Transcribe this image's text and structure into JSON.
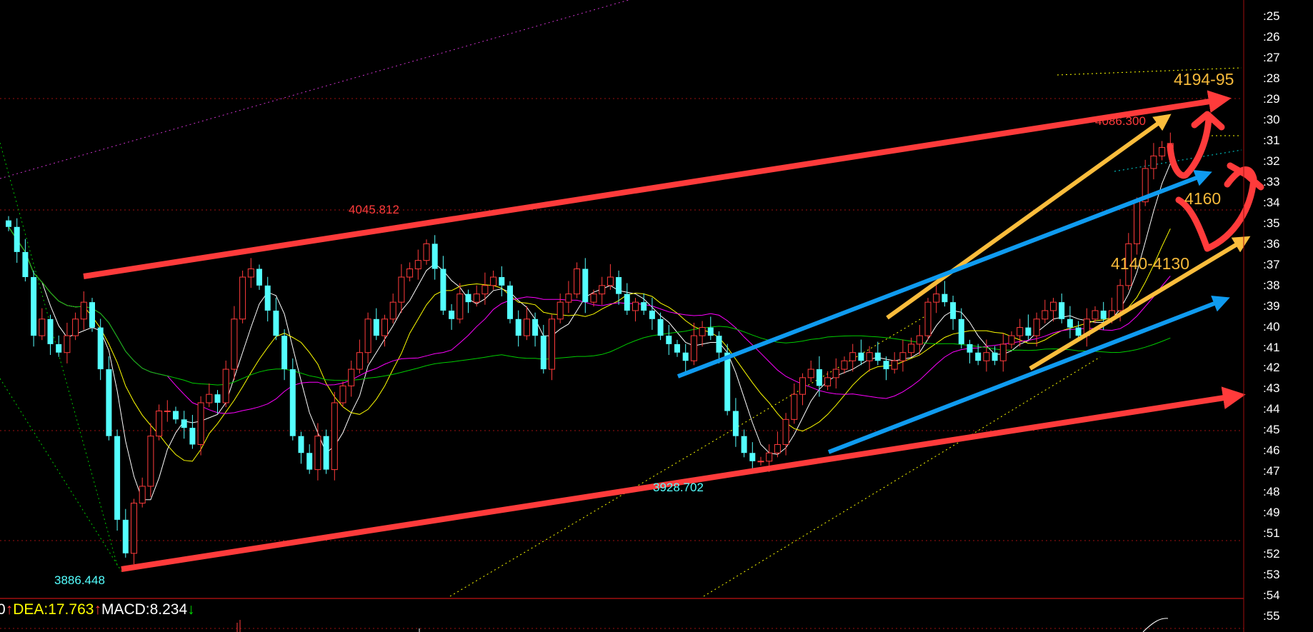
{
  "chart_data": {
    "type": "candlestick",
    "ylim": [
      3874,
      4150
    ],
    "colors": {
      "up": "#ff3b3b",
      "down": "#54ffff",
      "ma5": "#ffffff",
      "ma10": "#ffff00",
      "ma20": "#ff00ff",
      "ma60": "#00cc00"
    },
    "close": [
      4045.1,
      4033.5,
      4021.9,
      3994.8,
      4002.5,
      3990.9,
      3987.0,
      3994.8,
      4002.5,
      4010.3,
      3998.6,
      3979.3,
      3948.4,
      3909.7,
      3894.2,
      3917.4,
      3925.2,
      3948.4,
      3960.0,
      3960.0,
      3956.1,
      3952.2,
      3944.5,
      3963.8,
      3967.7,
      3963.8,
      3979.3,
      4002.5,
      4021.9,
      4025.7,
      4018.0,
      4006.4,
      3994.8,
      3979.3,
      3948.4,
      3940.6,
      3932.9,
      3948.4,
      3932.9,
      3963.8,
      3971.6,
      3979.3,
      3987.0,
      4002.5,
      3994.8,
      4002.5,
      4010.3,
      4021.9,
      4025.7,
      4029.6,
      4037.3,
      4025.7,
      4006.4,
      4002.5,
      4014.1,
      4010.3,
      4014.1,
      4018.0,
      4021.9,
      4018.0,
      4002.5,
      3994.8,
      4002.5,
      3994.8,
      3979.3,
      4002.5,
      4010.3,
      4014.1,
      4025.7,
      4010.3,
      4014.1,
      4018.0,
      4021.9,
      4014.1,
      4006.4,
      4010.3,
      4006.4,
      4002.5,
      3994.8,
      3990.9,
      3987.0,
      3983.2,
      3994.8,
      3998.6,
      3994.8,
      3987.0,
      3960.0,
      3948.4,
      3940.6,
      3936.8,
      3936.8,
      3940.6,
      3944.5,
      3956.1,
      3967.7,
      3975.4,
      3979.3,
      3971.6,
      3975.4,
      3979.3,
      3983.2,
      3987.0,
      3983.2,
      3987.0,
      3983.2,
      3979.3,
      3983.2,
      3987.0,
      3990.9,
      3994.8,
      4010.3,
      4014.1,
      4010.3,
      4002.5,
      3990.9,
      3987.0,
      3983.2,
      3987.0,
      3983.2,
      3990.9,
      3994.8,
      3998.6,
      3994.8,
      4002.5,
      4006.4,
      4010.3,
      4002.5,
      3998.6,
      3994.8,
      4002.5,
      4006.4,
      4002.5,
      4006.4,
      4018.0,
      4037.3,
      4056.7,
      4072.1,
      4077.9,
      4081.8,
      4083.7
    ],
    "marked_points": {
      "high_1": "4045.812",
      "high_2": "4086.300",
      "low_1": "3886.448",
      "low_2": "3928.702"
    },
    "annotations": [
      "4194-95",
      "4160",
      "4140-4130"
    ],
    "annotation_color": "#f5b93a",
    "arrow_colors": {
      "red": "#ff3b3b",
      "orange": "#fbbd3c",
      "blue": "#0f9bf0"
    },
    "y_axis_labels": [
      ":25",
      ":26",
      ":27",
      ":28",
      ":29",
      ":30",
      ":31",
      ":32",
      ":33",
      ":34",
      ":35",
      ":36",
      ":37",
      ":38",
      ":39",
      ":40",
      ":41",
      ":42",
      ":43",
      ":44",
      ":45",
      ":46",
      ":47",
      ":48",
      ":49",
      ":51",
      ":52",
      ":53",
      ":54",
      ":55"
    ]
  },
  "macd": {
    "dif_tail": "0",
    "dea": "DEA:17.763",
    "macd": "MACD:8.234",
    "up_arrow": "↑",
    "down_arrow": "↓"
  }
}
